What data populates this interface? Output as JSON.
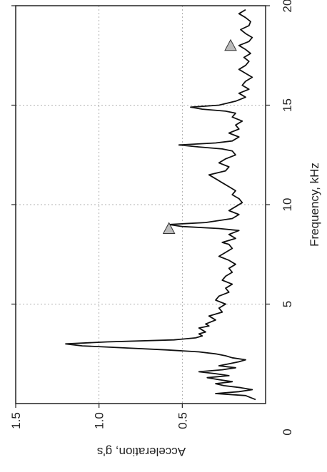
{
  "chart_data": {
    "type": "line",
    "title": "",
    "orientation": "rotated-90-cw",
    "xlabel": "Frequency, kHz",
    "ylabel": "Acceleration, g's",
    "xlim": [
      0,
      20
    ],
    "ylim": [
      0,
      1.5
    ],
    "x_ticks": [
      5,
      10,
      15,
      20
    ],
    "y_ticks": [
      0.5,
      1.0,
      1.5
    ],
    "y_tick_labels": [
      "0.5",
      "1.0",
      "1.5"
    ],
    "origin_label": "0",
    "grid": true,
    "series": [
      {
        "x": [
          0.2,
          0.4,
          0.5,
          0.6,
          0.7,
          0.8,
          0.9,
          1.0,
          1.1,
          1.2,
          1.3,
          1.4,
          1.5,
          1.6,
          1.7,
          1.8,
          1.9,
          2.0,
          2.1,
          2.2,
          2.3,
          2.4,
          2.5,
          2.6,
          2.7,
          2.8,
          2.9,
          3.0,
          3.1,
          3.2,
          3.3,
          3.4,
          3.5,
          3.6,
          3.7,
          3.8,
          3.9,
          4.0,
          4.2,
          4.4,
          4.6,
          4.8,
          5.0,
          5.2,
          5.4,
          5.6,
          5.8,
          6.0,
          6.2,
          6.4,
          6.6,
          6.8,
          7.0,
          7.2,
          7.4,
          7.6,
          7.8,
          8.0,
          8.1,
          8.3,
          8.5,
          8.7,
          8.8,
          8.9,
          9.0,
          9.1,
          9.3,
          9.5,
          9.7,
          9.9,
          10.1,
          10.3,
          10.5,
          10.7,
          10.9,
          11.1,
          11.3,
          11.5,
          11.7,
          11.9,
          12.1,
          12.3,
          12.5,
          12.7,
          12.8,
          12.9,
          13.0,
          13.1,
          13.2,
          13.4,
          13.6,
          13.8,
          14.0,
          14.2,
          14.4,
          14.6,
          14.7,
          14.8,
          14.9,
          15.0,
          15.2,
          15.4,
          15.6,
          15.8,
          16.0,
          16.2,
          16.4,
          16.6,
          16.8,
          17.0,
          17.2,
          17.4,
          17.6,
          17.8,
          18.0,
          18.2,
          18.4,
          18.6,
          18.8,
          19.0,
          19.2,
          19.4,
          19.6,
          19.8
        ],
        "y": [
          0.06,
          0.12,
          0.3,
          0.16,
          0.08,
          0.15,
          0.25,
          0.3,
          0.2,
          0.28,
          0.35,
          0.22,
          0.3,
          0.4,
          0.26,
          0.18,
          0.28,
          0.22,
          0.16,
          0.12,
          0.2,
          0.24,
          0.3,
          0.4,
          0.6,
          0.85,
          1.1,
          1.2,
          0.95,
          0.55,
          0.42,
          0.38,
          0.4,
          0.36,
          0.38,
          0.4,
          0.34,
          0.36,
          0.3,
          0.34,
          0.26,
          0.28,
          0.24,
          0.3,
          0.28,
          0.22,
          0.24,
          0.2,
          0.26,
          0.24,
          0.2,
          0.22,
          0.18,
          0.22,
          0.28,
          0.24,
          0.2,
          0.22,
          0.26,
          0.18,
          0.22,
          0.16,
          0.28,
          0.5,
          0.58,
          0.36,
          0.2,
          0.16,
          0.22,
          0.18,
          0.14,
          0.16,
          0.2,
          0.18,
          0.22,
          0.26,
          0.3,
          0.34,
          0.24,
          0.22,
          0.28,
          0.24,
          0.18,
          0.2,
          0.26,
          0.4,
          0.52,
          0.3,
          0.2,
          0.16,
          0.22,
          0.16,
          0.18,
          0.14,
          0.2,
          0.18,
          0.24,
          0.38,
          0.45,
          0.28,
          0.18,
          0.12,
          0.16,
          0.1,
          0.14,
          0.12,
          0.08,
          0.12,
          0.16,
          0.12,
          0.1,
          0.13,
          0.09,
          0.12,
          0.16,
          0.1,
          0.08,
          0.12,
          0.15,
          0.1,
          0.09,
          0.12,
          0.16,
          0.12
        ]
      }
    ],
    "markers": [
      {
        "shape": "triangle",
        "x": 8.8,
        "y": 0.58
      },
      {
        "shape": "triangle",
        "x": 18.0,
        "y": 0.21
      }
    ]
  }
}
